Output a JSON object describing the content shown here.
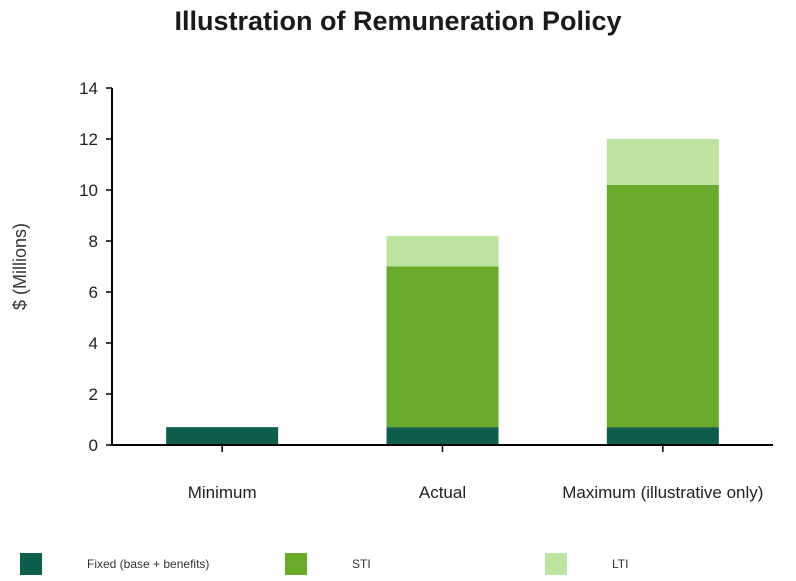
{
  "chart_data": {
    "type": "bar",
    "stacked": true,
    "title": "Illustration of Remuneration Policy",
    "xlabel": "",
    "ylabel": "$ (Millions)",
    "ylim": [
      0,
      14
    ],
    "yticks": [
      "0",
      "2",
      "4",
      "6",
      "8",
      "10",
      "12",
      "14"
    ],
    "categories": [
      "Minimum",
      "Actual",
      "Maximum (illustrative only)"
    ],
    "series": [
      {
        "name": "Fixed (base + benefits)",
        "values": [
          0.7,
          0.7,
          0.7
        ],
        "color": "#0e5e4e"
      },
      {
        "name": "STI",
        "values": [
          0,
          6.3,
          9.5
        ],
        "color": "#6aaa2a"
      },
      {
        "name": "LTI",
        "values": [
          0,
          1.2,
          1.8
        ],
        "color": "#bde3a0"
      }
    ],
    "grid": false,
    "legend_position": "bottom"
  }
}
